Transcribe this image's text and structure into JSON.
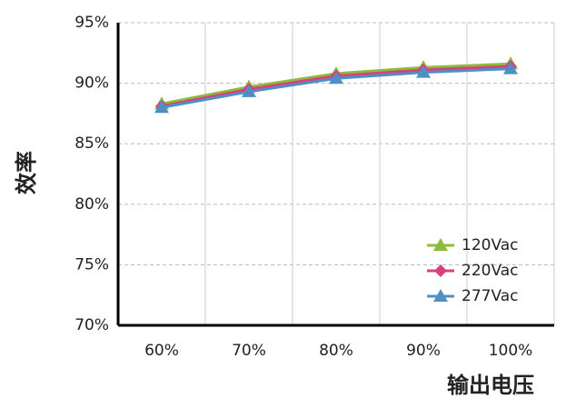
{
  "chart_data": {
    "type": "line",
    "x_label": "输出电压",
    "y_label": "效率",
    "categories": [
      "60%",
      "70%",
      "80%",
      "90%",
      "100%"
    ],
    "series": [
      {
        "name": "120Vac",
        "color": "#8dbb3c",
        "marker": "triangle",
        "values": [
          88.3,
          89.7,
          90.8,
          91.3,
          91.6
        ]
      },
      {
        "name": "220Vac",
        "color": "#d6417e",
        "marker": "diamond",
        "values": [
          88.1,
          89.5,
          90.6,
          91.1,
          91.4
        ]
      },
      {
        "name": "277Vac",
        "color": "#4f8fc6",
        "marker": "triangle",
        "values": [
          88.0,
          89.3,
          90.4,
          90.9,
          91.2
        ]
      }
    ],
    "ylim": [
      70,
      95
    ],
    "yticks": [
      {
        "value": 70,
        "label": "70%"
      },
      {
        "value": 75,
        "label": "75%"
      },
      {
        "value": 80,
        "label": "80%"
      },
      {
        "value": 85,
        "label": "85%"
      },
      {
        "value": 90,
        "label": "90%"
      },
      {
        "value": 95,
        "label": "95%"
      }
    ],
    "grid": true,
    "legend": "lower-right"
  }
}
